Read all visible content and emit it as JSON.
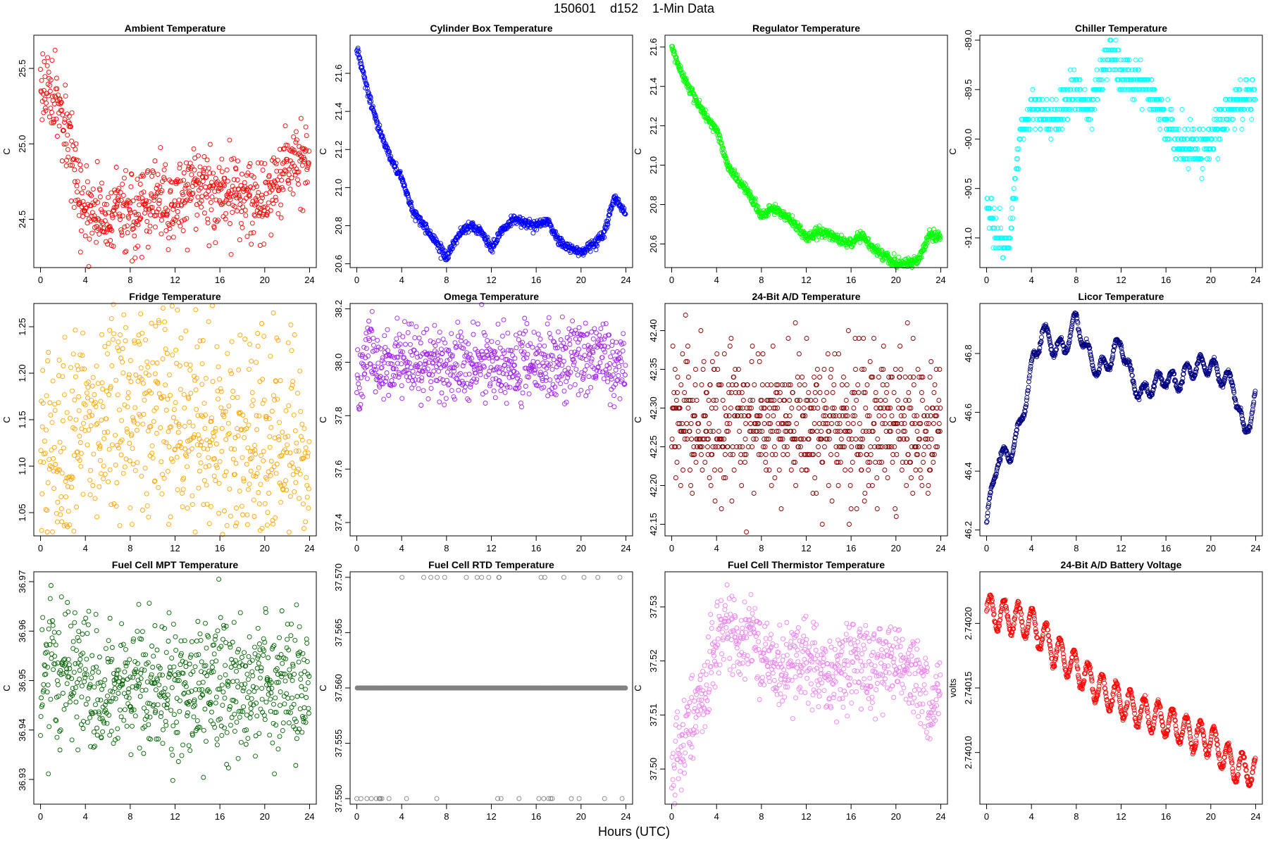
{
  "figure": {
    "title": "150601    d152    1-Min Data",
    "xlabel": "Hours (UTC)"
  },
  "chart_data": [
    {
      "type": "scatter",
      "title": "Ambient Temperature",
      "ylabel": "C",
      "color": "#FF0000",
      "xticks": [
        0,
        4,
        8,
        12,
        16,
        20,
        24
      ],
      "yticks": [
        24.5,
        25.0,
        25.5
      ],
      "ytick_labels": [
        "24.5",
        "25.0",
        "25.5"
      ],
      "ylim": [
        24.18,
        25.72
      ],
      "xlim": [
        -0.6,
        24.6
      ],
      "trend": [
        [
          0,
          25.4
        ],
        [
          1,
          25.35
        ],
        [
          2,
          25.1
        ],
        [
          3,
          24.85
        ],
        [
          3.5,
          24.55
        ],
        [
          4,
          24.55
        ],
        [
          6,
          24.52
        ],
        [
          8,
          24.55
        ],
        [
          10,
          24.62
        ],
        [
          12,
          24.58
        ],
        [
          14,
          24.75
        ],
        [
          16,
          24.68
        ],
        [
          18,
          24.65
        ],
        [
          20,
          24.62
        ],
        [
          22,
          24.88
        ],
        [
          24,
          24.9
        ]
      ],
      "noise": 0.13
    },
    {
      "type": "scatter",
      "title": "Cylinder Box Temperature",
      "ylabel": "C",
      "color": "#0000FF",
      "xticks": [
        0,
        4,
        8,
        12,
        16,
        20,
        24
      ],
      "yticks": [
        20.6,
        20.8,
        21.0,
        21.2,
        21.4,
        21.6
      ],
      "ytick_labels": [
        "20.6",
        "20.8",
        "21.0",
        "21.2",
        "21.4",
        "21.6"
      ],
      "ylim": [
        20.58,
        21.8
      ],
      "xlim": [
        -0.6,
        24.6
      ],
      "trend": [
        [
          0,
          21.74
        ],
        [
          1,
          21.5
        ],
        [
          2,
          21.3
        ],
        [
          3,
          21.15
        ],
        [
          4,
          21.05
        ],
        [
          5,
          20.88
        ],
        [
          6,
          20.8
        ],
        [
          7,
          20.72
        ],
        [
          8,
          20.63
        ],
        [
          9,
          20.75
        ],
        [
          10,
          20.8
        ],
        [
          11,
          20.78
        ],
        [
          12,
          20.68
        ],
        [
          13,
          20.78
        ],
        [
          14,
          20.83
        ],
        [
          15,
          20.82
        ],
        [
          16,
          20.8
        ],
        [
          17,
          20.83
        ],
        [
          18,
          20.72
        ],
        [
          19,
          20.68
        ],
        [
          20,
          20.66
        ],
        [
          21,
          20.7
        ],
        [
          22,
          20.75
        ],
        [
          23,
          20.95
        ],
        [
          24,
          20.86
        ]
      ],
      "noise": 0.012
    },
    {
      "type": "scatter",
      "title": "Regulator Temperature",
      "ylabel": "C",
      "color": "#00FF00",
      "xticks": [
        0,
        4,
        8,
        12,
        16,
        20,
        24
      ],
      "yticks": [
        20.6,
        20.8,
        21.0,
        21.2,
        21.4,
        21.6
      ],
      "ytick_labels": [
        "20.6",
        "20.8",
        "21.0",
        "21.2",
        "21.4",
        "21.6"
      ],
      "ylim": [
        20.48,
        21.66
      ],
      "xlim": [
        -0.6,
        24.6
      ],
      "trend": [
        [
          0,
          21.6
        ],
        [
          1,
          21.45
        ],
        [
          2,
          21.35
        ],
        [
          3,
          21.25
        ],
        [
          4,
          21.18
        ],
        [
          5,
          21.0
        ],
        [
          6,
          20.92
        ],
        [
          7,
          20.85
        ],
        [
          8,
          20.74
        ],
        [
          9,
          20.78
        ],
        [
          10,
          20.75
        ],
        [
          11,
          20.7
        ],
        [
          12,
          20.63
        ],
        [
          13,
          20.66
        ],
        [
          14,
          20.65
        ],
        [
          15,
          20.62
        ],
        [
          16,
          20.6
        ],
        [
          17,
          20.64
        ],
        [
          18,
          20.58
        ],
        [
          19,
          20.54
        ],
        [
          20,
          20.5
        ],
        [
          21,
          20.5
        ],
        [
          22,
          20.52
        ],
        [
          23,
          20.65
        ],
        [
          24,
          20.63
        ]
      ],
      "noise": 0.012
    },
    {
      "type": "scatter",
      "title": "Chiller Temperature",
      "ylabel": "C",
      "color": "#00FFFF",
      "xticks": [
        0,
        4,
        8,
        12,
        16,
        20,
        24
      ],
      "yticks": [
        -91.0,
        -90.5,
        -90.0,
        -89.5,
        -89.0
      ],
      "ytick_labels": [
        "-91.0",
        "-90.5",
        "-90.0",
        "-89.5",
        "-89.0"
      ],
      "ylim": [
        -91.3,
        -88.95
      ],
      "xlim": [
        -0.6,
        24.6
      ],
      "trend": [
        [
          0,
          -90.6
        ],
        [
          1,
          -91.0
        ],
        [
          2,
          -91.05
        ],
        [
          2.5,
          -90.5
        ],
        [
          3,
          -89.9
        ],
        [
          4,
          -89.7
        ],
        [
          6,
          -89.8
        ],
        [
          8,
          -89.5
        ],
        [
          9,
          -89.7
        ],
        [
          10,
          -89.5
        ],
        [
          11,
          -89.1
        ],
        [
          12,
          -89.35
        ],
        [
          14,
          -89.5
        ],
        [
          15,
          -89.6
        ],
        [
          16,
          -89.8
        ],
        [
          17,
          -90.05
        ],
        [
          19,
          -90.1
        ],
        [
          20,
          -90.0
        ],
        [
          21,
          -89.8
        ],
        [
          22,
          -89.65
        ],
        [
          24,
          -89.55
        ]
      ],
      "noise": 0.1,
      "quant": 0.1
    },
    {
      "type": "scatter",
      "title": "Fridge Temperature",
      "ylabel": "C",
      "color": "#FFA500",
      "xticks": [
        0,
        4,
        8,
        12,
        16,
        20,
        24
      ],
      "yticks": [
        1.05,
        1.1,
        1.15,
        1.2,
        1.25
      ],
      "ytick_labels": [
        "1.05",
        "1.10",
        "1.15",
        "1.20",
        "1.25"
      ],
      "ylim": [
        1.025,
        1.275
      ],
      "xlim": [
        -0.6,
        24.6
      ],
      "trend": [
        [
          0,
          1.08
        ],
        [
          2,
          1.1
        ],
        [
          4,
          1.15
        ],
        [
          6,
          1.16
        ],
        [
          8,
          1.16
        ],
        [
          12,
          1.14
        ],
        [
          16,
          1.12
        ],
        [
          20,
          1.12
        ],
        [
          24,
          1.1
        ]
      ],
      "noise": 0.065
    },
    {
      "type": "scatter",
      "title": "Omega Temperature",
      "ylabel": "C",
      "color": "#A020F0",
      "xticks": [
        0,
        4,
        8,
        12,
        16,
        20,
        24
      ],
      "yticks": [
        37.4,
        37.6,
        37.8,
        38.0,
        38.2
      ],
      "ytick_labels": [
        "37.4",
        "37.6",
        "37.8",
        "38.0",
        "38.2"
      ],
      "ylim": [
        37.35,
        38.22
      ],
      "xlim": [
        -0.6,
        24.6
      ],
      "trend": [
        [
          0,
          37.88
        ],
        [
          1,
          38.05
        ],
        [
          2,
          37.95
        ],
        [
          4,
          38.02
        ],
        [
          8,
          38.0
        ],
        [
          12,
          38.0
        ],
        [
          16,
          38.0
        ],
        [
          18,
          38.0
        ],
        [
          20,
          38.0
        ],
        [
          22,
          38.02
        ],
        [
          23,
          37.95
        ],
        [
          24,
          38.0
        ]
      ],
      "noise": 0.07
    },
    {
      "type": "scatter",
      "title": "24-Bit A/D Temperature",
      "ylabel": "C",
      "color": "#8B0000",
      "xticks": [
        0,
        4,
        8,
        12,
        16,
        20,
        24
      ],
      "yticks": [
        42.15,
        42.2,
        42.25,
        42.3,
        42.35,
        42.4
      ],
      "ytick_labels": [
        "42.15",
        "42.20",
        "42.25",
        "42.30",
        "42.35",
        "42.40"
      ],
      "ylim": [
        42.135,
        42.435
      ],
      "xlim": [
        -0.6,
        24.6
      ],
      "trend": [
        [
          0,
          42.28
        ],
        [
          24,
          42.28
        ]
      ],
      "noise": 0.045,
      "quant": 0.01
    },
    {
      "type": "scatter",
      "title": "Licor Temperature",
      "ylabel": "C",
      "color": "#000080",
      "xticks": [
        0,
        4,
        8,
        12,
        16,
        20,
        24
      ],
      "yticks": [
        46.2,
        46.4,
        46.6,
        46.8
      ],
      "ytick_labels": [
        "46.2",
        "46.4",
        "46.6",
        "46.8"
      ],
      "ylim": [
        46.18,
        46.97
      ],
      "xlim": [
        -0.6,
        24.6
      ],
      "trend": [
        [
          0,
          46.22
        ],
        [
          1,
          46.45
        ],
        [
          2,
          46.45
        ],
        [
          3,
          46.55
        ],
        [
          4,
          46.75
        ],
        [
          5,
          46.88
        ],
        [
          6,
          46.82
        ],
        [
          7,
          46.82
        ],
        [
          8,
          46.92
        ],
        [
          9,
          46.8
        ],
        [
          10,
          46.74
        ],
        [
          11,
          46.78
        ],
        [
          12,
          46.84
        ],
        [
          13,
          46.7
        ],
        [
          14,
          46.66
        ],
        [
          15,
          46.7
        ],
        [
          16,
          46.72
        ],
        [
          17,
          46.7
        ],
        [
          18,
          46.74
        ],
        [
          19,
          46.76
        ],
        [
          20,
          46.76
        ],
        [
          21,
          46.72
        ],
        [
          22,
          46.7
        ],
        [
          23,
          46.52
        ],
        [
          24,
          46.65
        ]
      ],
      "noise": 0.004,
      "wiggle": 0.03
    },
    {
      "type": "scatter",
      "title": "Fuel Cell MPT Temperature",
      "ylabel": "C",
      "color": "#006400",
      "xticks": [
        0,
        4,
        8,
        12,
        16,
        20,
        24
      ],
      "yticks": [
        36.93,
        36.94,
        36.95,
        36.96,
        36.97
      ],
      "ytick_labels": [
        "36.93",
        "36.94",
        "36.95",
        "36.96",
        "36.97"
      ],
      "ylim": [
        36.925,
        36.972
      ],
      "xlim": [
        -0.6,
        24.6
      ],
      "trend": [
        [
          0,
          36.952
        ],
        [
          3,
          36.952
        ],
        [
          5,
          36.945
        ],
        [
          8,
          36.95
        ],
        [
          12,
          36.948
        ],
        [
          16,
          36.95
        ],
        [
          20,
          36.95
        ],
        [
          24,
          36.948
        ]
      ],
      "noise": 0.007
    },
    {
      "type": "scatter",
      "title": "Fuel Cell RTD Temperature",
      "ylabel": "C",
      "color": "#808080",
      "xticks": [
        0,
        4,
        8,
        12,
        16,
        20,
        24
      ],
      "yticks": [
        37.55,
        37.555,
        37.56,
        37.565,
        37.57
      ],
      "ytick_labels": [
        "37.550",
        "37.555",
        "37.560",
        "37.565",
        "37.570"
      ],
      "ylim": [
        37.5495,
        37.5705
      ],
      "xlim": [
        -0.6,
        24.6
      ],
      "trend": [
        [
          0,
          37.56
        ],
        [
          24,
          37.56
        ]
      ],
      "levels": [
        37.55,
        37.56,
        37.57
      ]
    },
    {
      "type": "scatter",
      "title": "Fuel Cell Thermistor Temperature",
      "ylabel": "C",
      "color": "#EE82EE",
      "xticks": [
        0,
        4,
        8,
        12,
        16,
        20,
        24
      ],
      "yticks": [
        37.5,
        37.51,
        37.52,
        37.53
      ],
      "ytick_labels": [
        "37.50",
        "37.51",
        "37.52",
        "37.53"
      ],
      "ylim": [
        37.4935,
        37.5365
      ],
      "xlim": [
        -0.6,
        24.6
      ],
      "trend": [
        [
          0,
          37.497
        ],
        [
          1,
          37.505
        ],
        [
          2,
          37.51
        ],
        [
          3,
          37.515
        ],
        [
          4,
          37.522
        ],
        [
          5,
          37.528
        ],
        [
          6,
          37.522
        ],
        [
          7,
          37.526
        ],
        [
          8,
          37.522
        ],
        [
          10,
          37.518
        ],
        [
          12,
          37.521
        ],
        [
          14,
          37.518
        ],
        [
          16,
          37.519
        ],
        [
          18,
          37.52
        ],
        [
          20,
          37.52
        ],
        [
          22,
          37.518
        ],
        [
          23,
          37.51
        ],
        [
          24,
          37.516
        ]
      ],
      "noise": 0.004
    },
    {
      "type": "scatter",
      "title": "24-Bit A/D Battery Voltage",
      "ylabel": "volts",
      "color": "#FF0000",
      "xticks": [
        0,
        4,
        8,
        12,
        16,
        20,
        24
      ],
      "yticks": [
        2.7401,
        2.74015,
        2.7402
      ],
      "ytick_labels": [
        "2.74010",
        "2.74015",
        "2.74020"
      ],
      "ylim": [
        2.74006,
        2.74024
      ],
      "xlim": [
        -0.6,
        24.6
      ],
      "trend": [
        [
          0,
          2.74021
        ],
        [
          2,
          2.740205
        ],
        [
          4,
          2.7402
        ],
        [
          6,
          2.74018
        ],
        [
          8,
          2.740165
        ],
        [
          10,
          2.74015
        ],
        [
          12,
          2.74014
        ],
        [
          14,
          2.74013
        ],
        [
          16,
          2.740125
        ],
        [
          18,
          2.740115
        ],
        [
          20,
          2.74011
        ],
        [
          22,
          2.74009
        ],
        [
          24,
          2.740085
        ]
      ],
      "noise": 1.2e-06,
      "wiggle": 1.2e-05
    }
  ]
}
